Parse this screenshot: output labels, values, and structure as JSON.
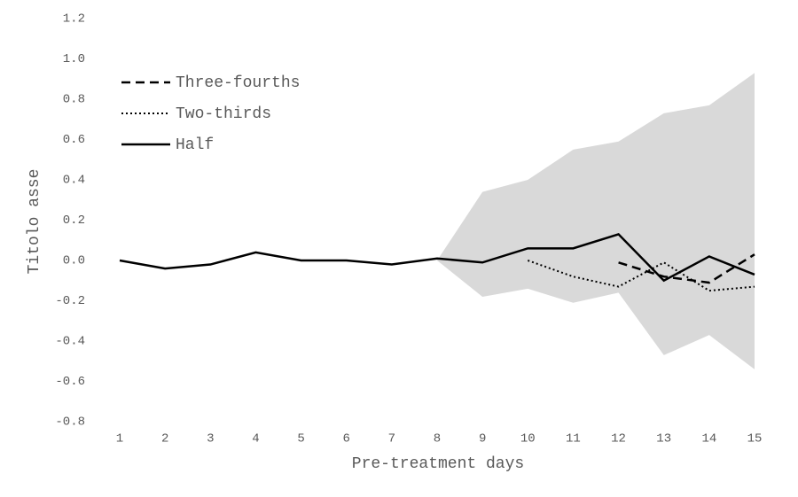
{
  "chart_data": {
    "type": "line",
    "x_label": "Pre-treatment days",
    "y_label": "Titolo asse",
    "categories": [
      "1",
      "2",
      "3",
      "4",
      "5",
      "6",
      "7",
      "8",
      "9",
      "10",
      "11",
      "12",
      "13",
      "14",
      "15"
    ],
    "ylim": [
      -0.8,
      1.2
    ],
    "yticks": [
      1.2,
      {
        "value": 1.0,
        "label": "1.0"
      },
      0.8,
      0.6,
      0.4,
      0.2,
      {
        "value": 0.0,
        "label": "0.0"
      },
      -0.2,
      -0.4,
      -0.6,
      -0.8
    ],
    "legend": "top-left",
    "band": {
      "color": "#d9d9d9",
      "upper": [
        null,
        null,
        null,
        null,
        null,
        null,
        null,
        0.0,
        0.34,
        0.4,
        0.55,
        0.59,
        0.73,
        0.77,
        0.93
      ],
      "lower": [
        null,
        null,
        null,
        null,
        null,
        null,
        null,
        0.0,
        -0.18,
        -0.14,
        -0.21,
        -0.16,
        -0.47,
        -0.37,
        -0.54
      ]
    },
    "series": [
      {
        "name": "Three-fourths",
        "color": "#000000",
        "dash": "dashed",
        "values": [
          null,
          null,
          null,
          null,
          null,
          null,
          null,
          null,
          null,
          null,
          null,
          -0.01,
          -0.08,
          -0.11,
          0.03
        ]
      },
      {
        "name": "Two-thirds",
        "color": "#000000",
        "dash": "dotted",
        "values": [
          null,
          null,
          null,
          null,
          null,
          null,
          null,
          null,
          null,
          0.0,
          -0.08,
          -0.13,
          -0.01,
          -0.15,
          -0.13
        ]
      },
      {
        "name": "Half",
        "color": "#000000",
        "dash": "solid",
        "values": [
          0.0,
          -0.04,
          -0.02,
          0.04,
          0.0,
          0.0,
          -0.02,
          0.01,
          -0.01,
          0.06,
          0.06,
          0.13,
          -0.1,
          0.02,
          -0.07
        ]
      }
    ]
  }
}
